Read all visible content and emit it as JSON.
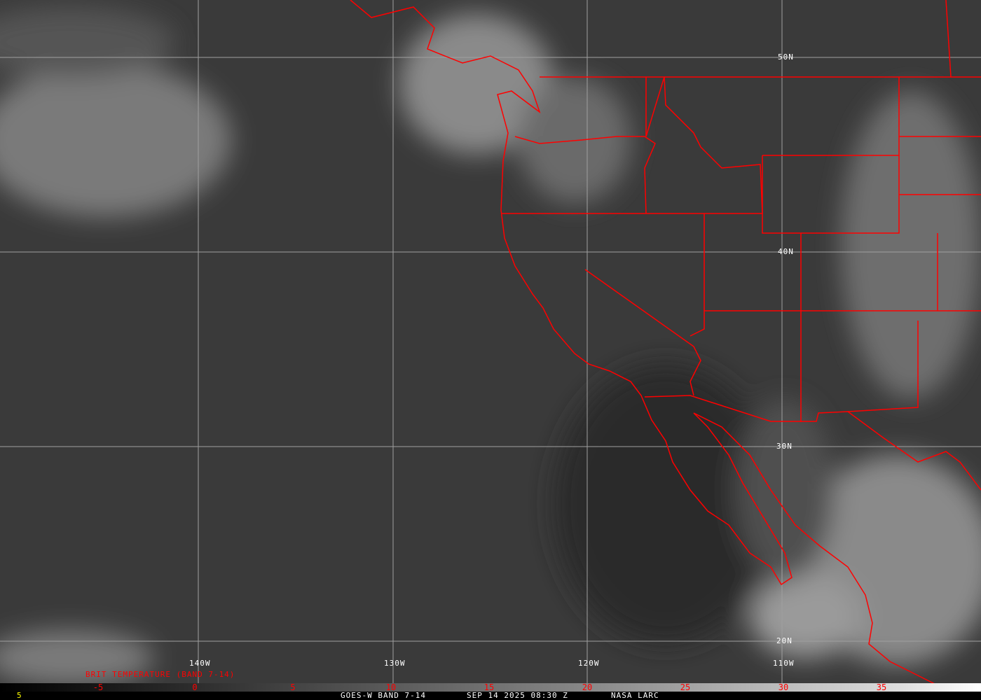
{
  "map": {
    "grid_labels": {
      "lon": [
        "140W",
        "130W",
        "120W",
        "110W"
      ],
      "lat": [
        "50N",
        "40N",
        "30N",
        "20N"
      ]
    },
    "colors": {
      "borders": "#ff0000",
      "grid": "#a0a0a0",
      "scale_text": "#ff0000",
      "footer_text": "#ffffff",
      "corner_text": "#ffff00"
    }
  },
  "legend": {
    "title": "BRIT TEMPERATURE (BAND 7-14)",
    "ticks": [
      "-5",
      "0",
      "5",
      "10",
      "15",
      "20",
      "25",
      "30",
      "35"
    ],
    "min_label": "5"
  },
  "footer": {
    "satellite": "GOES-W BAND 7-14",
    "datetime": "SEP 14 2025 08:30 Z",
    "source": "NASA LARC"
  }
}
